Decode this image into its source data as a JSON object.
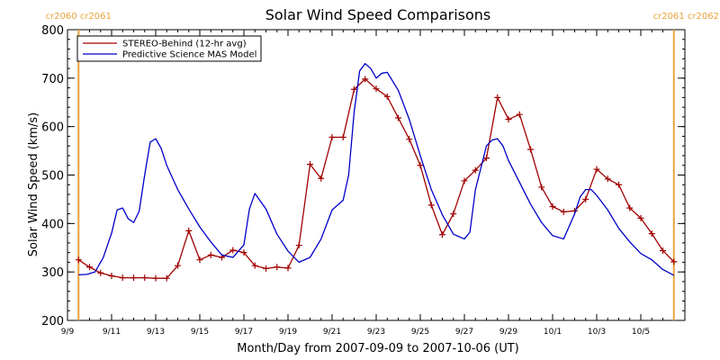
{
  "chart_data": {
    "type": "line",
    "title": "Solar Wind Speed Comparisons",
    "xlabel": "Month/Day from 2007-09-09 to 2007-10-06 (UT)",
    "ylabel": "Solar Wind Speed (km/s)",
    "xlim": [
      "2007-09-09",
      "2007-10-07"
    ],
    "ylim": [
      200,
      800
    ],
    "y_ticks": [
      200,
      300,
      400,
      500,
      600,
      700,
      800
    ],
    "x_tick_labels": [
      {
        "date": "2007-09-09",
        "label": "9/9"
      },
      {
        "date": "2007-09-11",
        "label": "9/11"
      },
      {
        "date": "2007-09-13",
        "label": "9/13"
      },
      {
        "date": "2007-09-15",
        "label": "9/15"
      },
      {
        "date": "2007-09-17",
        "label": "9/17"
      },
      {
        "date": "2007-09-19",
        "label": "9/19"
      },
      {
        "date": "2007-09-21",
        "label": "9/21"
      },
      {
        "date": "2007-09-23",
        "label": "9/23"
      },
      {
        "date": "2007-09-25",
        "label": "9/25"
      },
      {
        "date": "2007-09-27",
        "label": "9/27"
      },
      {
        "date": "2007-09-29",
        "label": "9/29"
      },
      {
        "date": "2007-10-01",
        "label": "10/1"
      },
      {
        "date": "2007-10-03",
        "label": "10/3"
      },
      {
        "date": "2007-10-05",
        "label": "10/5"
      }
    ],
    "carrington_markers": [
      {
        "date": "2007-09-09T12:00",
        "labels": "cr2060 cr2061",
        "color": "#e8a33c"
      },
      {
        "date": "2007-10-06T12:00",
        "labels": "cr2061 cr2062",
        "color": "#e8a33c"
      }
    ],
    "legend_position": "top-left",
    "series": [
      {
        "name": "STEREO-Behind (12-hr avg)",
        "color": "#a00000",
        "marker": "plus",
        "x": [
          "2007-09-09T12:00",
          "2007-09-10T00:00",
          "2007-09-10T12:00",
          "2007-09-11T00:00",
          "2007-09-11T12:00",
          "2007-09-12T00:00",
          "2007-09-12T12:00",
          "2007-09-13T00:00",
          "2007-09-13T12:00",
          "2007-09-14T00:00",
          "2007-09-14T12:00",
          "2007-09-15T00:00",
          "2007-09-15T12:00",
          "2007-09-16T00:00",
          "2007-09-16T12:00",
          "2007-09-17T00:00",
          "2007-09-17T12:00",
          "2007-09-18T00:00",
          "2007-09-18T12:00",
          "2007-09-19T00:00",
          "2007-09-19T12:00",
          "2007-09-20T00:00",
          "2007-09-20T12:00",
          "2007-09-21T00:00",
          "2007-09-21T12:00",
          "2007-09-22T00:00",
          "2007-09-22T12:00",
          "2007-09-23T00:00",
          "2007-09-23T12:00",
          "2007-09-24T00:00",
          "2007-09-24T12:00",
          "2007-09-25T00:00",
          "2007-09-25T12:00",
          "2007-09-26T00:00",
          "2007-09-26T12:00",
          "2007-09-27T00:00",
          "2007-09-27T12:00",
          "2007-09-28T00:00",
          "2007-09-28T12:00",
          "2007-09-29T00:00",
          "2007-09-29T12:00",
          "2007-09-30T00:00",
          "2007-09-30T12:00",
          "2007-10-01T00:00",
          "2007-10-01T12:00",
          "2007-10-02T00:00",
          "2007-10-02T12:00",
          "2007-10-03T00:00",
          "2007-10-03T12:00",
          "2007-10-04T00:00",
          "2007-10-04T12:00",
          "2007-10-05T00:00",
          "2007-10-05T12:00",
          "2007-10-06T00:00",
          "2007-10-06T12:00"
        ],
        "y": [
          325,
          310,
          298,
          292,
          288,
          288,
          288,
          287,
          287,
          313,
          385,
          325,
          335,
          330,
          345,
          340,
          313,
          307,
          310,
          308,
          355,
          522,
          493,
          578,
          578,
          677,
          698,
          678,
          662,
          618,
          574,
          520,
          438,
          377,
          420,
          488,
          510,
          535,
          660,
          615,
          625,
          553,
          475,
          435,
          424,
          426,
          450,
          512,
          492,
          480,
          432,
          411,
          379,
          344,
          321
        ]
      },
      {
        "name": "Predictive Science MAS Model",
        "color": "#0000c8",
        "marker": "none",
        "x": [
          "2007-09-09T12:00",
          "2007-09-09T21:00",
          "2007-09-10T06:00",
          "2007-09-10T15:00",
          "2007-09-11T00:00",
          "2007-09-11T06:00",
          "2007-09-11T12:00",
          "2007-09-11T18:00",
          "2007-09-12T00:00",
          "2007-09-12T06:00",
          "2007-09-12T12:00",
          "2007-09-12T18:00",
          "2007-09-13T00:00",
          "2007-09-13T06:00",
          "2007-09-13T12:00",
          "2007-09-14T00:00",
          "2007-09-14T12:00",
          "2007-09-15T00:00",
          "2007-09-15T12:00",
          "2007-09-16T00:00",
          "2007-09-16T12:00",
          "2007-09-17T00:00",
          "2007-09-17T06:00",
          "2007-09-17T12:00",
          "2007-09-18T00:00",
          "2007-09-18T12:00",
          "2007-09-19T00:00",
          "2007-09-19T12:00",
          "2007-09-20T00:00",
          "2007-09-20T12:00",
          "2007-09-21T00:00",
          "2007-09-21T12:00",
          "2007-09-21T18:00",
          "2007-09-22T00:00",
          "2007-09-22T06:00",
          "2007-09-22T12:00",
          "2007-09-22T18:00",
          "2007-09-23T00:00",
          "2007-09-23T06:00",
          "2007-09-23T12:00",
          "2007-09-24T00:00",
          "2007-09-24T12:00",
          "2007-09-25T00:00",
          "2007-09-25T12:00",
          "2007-09-26T00:00",
          "2007-09-26T12:00",
          "2007-09-27T00:00",
          "2007-09-27T06:00",
          "2007-09-27T12:00",
          "2007-09-28T00:00",
          "2007-09-28T06:00",
          "2007-09-28T12:00",
          "2007-09-28T18:00",
          "2007-09-29T00:00",
          "2007-09-29T12:00",
          "2007-09-30T00:00",
          "2007-09-30T12:00",
          "2007-10-01T00:00",
          "2007-10-01T12:00",
          "2007-10-02T00:00",
          "2007-10-02T06:00",
          "2007-10-02T12:00",
          "2007-10-02T18:00",
          "2007-10-03T00:00",
          "2007-10-03T12:00",
          "2007-10-04T00:00",
          "2007-10-04T12:00",
          "2007-10-05T00:00",
          "2007-10-05T12:00",
          "2007-10-06T00:00",
          "2007-10-06T12:00"
        ],
        "y": [
          294,
          295,
          300,
          330,
          380,
          428,
          432,
          410,
          402,
          425,
          500,
          568,
          575,
          555,
          520,
          470,
          430,
          393,
          362,
          335,
          330,
          356,
          430,
          462,
          430,
          378,
          343,
          320,
          330,
          368,
          428,
          448,
          500,
          630,
          715,
          730,
          720,
          700,
          710,
          712,
          675,
          615,
          540,
          470,
          418,
          378,
          368,
          382,
          470,
          560,
          572,
          575,
          560,
          530,
          485,
          440,
          402,
          375,
          368,
          420,
          455,
          470,
          470,
          458,
          428,
          390,
          362,
          338,
          325,
          305,
          293
        ]
      }
    ]
  },
  "legend_items": [
    {
      "label": "STEREO-Behind (12-hr avg)",
      "color": "#a00000"
    },
    {
      "label": "Predictive Science MAS Model",
      "color": "#0000c8"
    }
  ]
}
